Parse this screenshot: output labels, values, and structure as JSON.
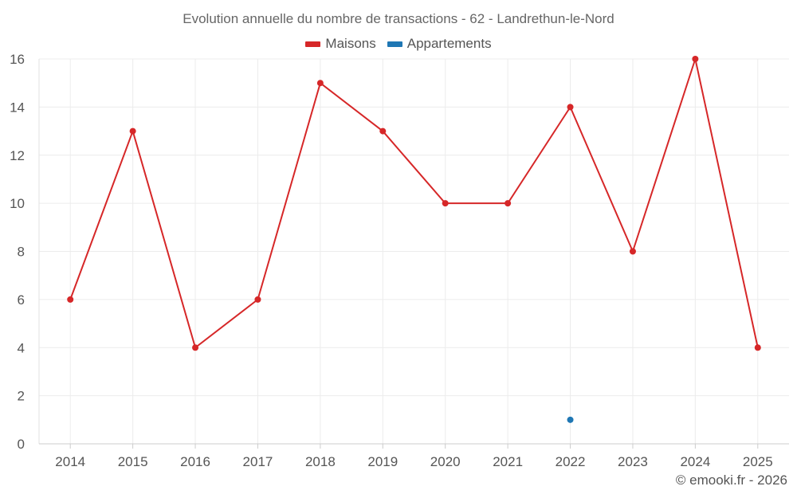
{
  "chart_data": {
    "type": "line",
    "title": "Evolution annuelle du nombre de transactions - 62 - Landrethun-le-Nord",
    "categories": [
      "2014",
      "2015",
      "2016",
      "2017",
      "2018",
      "2019",
      "2020",
      "2021",
      "2022",
      "2023",
      "2024",
      "2025"
    ],
    "series": [
      {
        "name": "Maisons",
        "color": "#d62728",
        "values": [
          6,
          13,
          4,
          6,
          15,
          13,
          10,
          10,
          14,
          8,
          16,
          4
        ]
      },
      {
        "name": "Appartements",
        "color": "#1f77b4",
        "values": [
          null,
          null,
          null,
          null,
          null,
          null,
          null,
          null,
          1,
          null,
          null,
          null
        ]
      }
    ],
    "yticks": [
      "0",
      "2",
      "4",
      "6",
      "8",
      "10",
      "12",
      "14",
      "16"
    ],
    "ylim": [
      0,
      16
    ],
    "xlabel": "",
    "ylabel": "",
    "grid": true,
    "legend": "top-center"
  },
  "footer": {
    "credit": "© emooki.fr - 2026"
  }
}
